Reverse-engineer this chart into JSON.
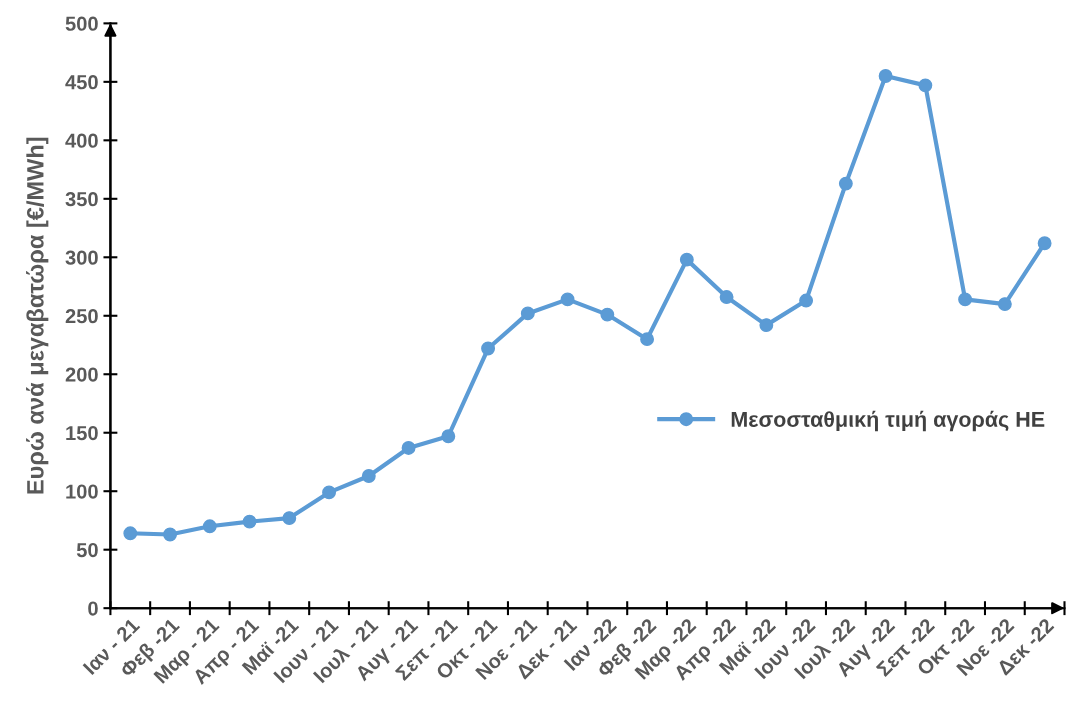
{
  "chart_data": {
    "type": "line",
    "ylabel": "Ευρώ ανά μεγαβατώρα [€/MWh]",
    "categories": [
      "Ιαν - 21",
      "Φεβ -21",
      "Μαρ - 21",
      "Απρ - 21",
      "Μαϊ -21",
      "Ιουν - 21",
      "Ιουλ - 21",
      "Αυγ - 21",
      "Σεπ - 21",
      "Οκτ - 21",
      "Νοε - 21",
      "Δεκ - 21",
      "Ιαν -22",
      "Φεβ -22",
      "Μαρ -22",
      "Απρ -22",
      "Μαϊ -22",
      "Ιουν -22",
      "Ιουλ -22",
      "Αυγ -22",
      "Σεπ -22",
      "Οκτ -22",
      "Νοε -22",
      "Δεκ -22"
    ],
    "series": [
      {
        "name": "Μεσοσταθμική τιμή αγοράς ΗΕ",
        "color": "#5b9bd5",
        "values": [
          64,
          63,
          70,
          74,
          77,
          99,
          113,
          137,
          147,
          222,
          252,
          264,
          251,
          230,
          298,
          266,
          242,
          263,
          363,
          455,
          447,
          264,
          260,
          312
        ]
      }
    ],
    "ylim": [
      0,
      500
    ],
    "yticks": [
      0,
      50,
      100,
      150,
      200,
      250,
      300,
      350,
      400,
      450,
      500
    ],
    "grid": false,
    "legend": "right",
    "marker": "circle",
    "line_style": "solid"
  }
}
